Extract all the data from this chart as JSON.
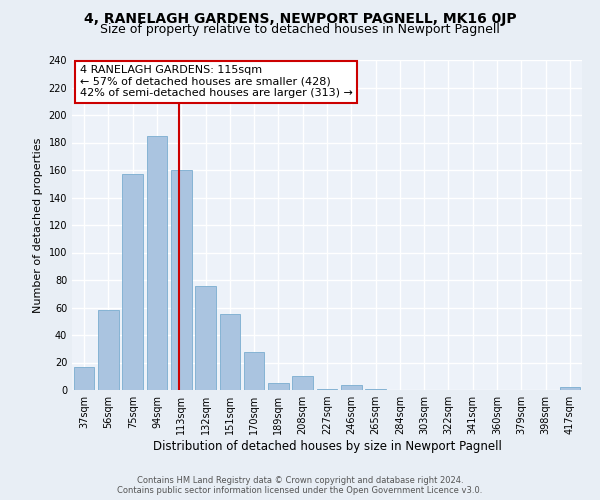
{
  "title": "4, RANELAGH GARDENS, NEWPORT PAGNELL, MK16 0JP",
  "subtitle": "Size of property relative to detached houses in Newport Pagnell",
  "xlabel": "Distribution of detached houses by size in Newport Pagnell",
  "ylabel": "Number of detached properties",
  "footer_line1": "Contains HM Land Registry data © Crown copyright and database right 2024.",
  "footer_line2": "Contains public sector information licensed under the Open Government Licence v3.0.",
  "annotation_title": "4 RANELAGH GARDENS: 115sqm",
  "annotation_line2": "← 57% of detached houses are smaller (428)",
  "annotation_line3": "42% of semi-detached houses are larger (313) →",
  "bar_color": "#aac4e0",
  "bar_edge_color": "#7aadd0",
  "vline_color": "#cc0000",
  "vline_x_index": 4,
  "categories": [
    "37sqm",
    "56sqm",
    "75sqm",
    "94sqm",
    "113sqm",
    "132sqm",
    "151sqm",
    "170sqm",
    "189sqm",
    "208sqm",
    "227sqm",
    "246sqm",
    "265sqm",
    "284sqm",
    "303sqm",
    "322sqm",
    "341sqm",
    "360sqm",
    "379sqm",
    "398sqm",
    "417sqm"
  ],
  "values": [
    17,
    58,
    157,
    185,
    160,
    76,
    55,
    28,
    5,
    10,
    1,
    4,
    1,
    0,
    0,
    0,
    0,
    0,
    0,
    0,
    2
  ],
  "ylim": [
    0,
    240
  ],
  "yticks": [
    0,
    20,
    40,
    60,
    80,
    100,
    120,
    140,
    160,
    180,
    200,
    220,
    240
  ],
  "background_color": "#e8eef5",
  "plot_bg_color": "#edf2f9",
  "grid_color": "#ffffff",
  "title_fontsize": 10,
  "subtitle_fontsize": 9,
  "xlabel_fontsize": 8.5,
  "ylabel_fontsize": 8,
  "tick_fontsize": 7,
  "annotation_box_edge_color": "#cc0000",
  "footer_fontsize": 6,
  "footer_color": "#555555"
}
